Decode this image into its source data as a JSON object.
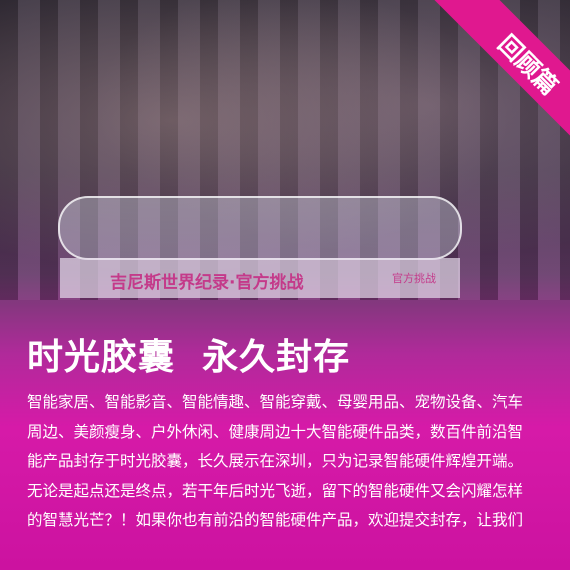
{
  "ribbon": "回顾篇",
  "photo": {
    "banner": "吉尼斯世界纪录·官方挑战",
    "badge": "官方挑战"
  },
  "title": "时光胶囊  永久封存",
  "paragraph": [
    "智能家居、智能影音、智能情趣、智能穿戴、母婴用品、宠物设备、汽车",
    "周边、美颜瘦身、户外休闲、健康周边十大智能硬件品类，数百件前沿智",
    "能产品封存于时光胶囊，长久展示在深圳，只为记录智能硬件辉煌开端。",
    "无论是起点还是终点，若干年后时光飞逝，留下的智能硬件又会闪耀怎样",
    "的智慧光芒？！如果你也有前沿的智能硬件产品，欢迎提交封存，让我们"
  ]
}
